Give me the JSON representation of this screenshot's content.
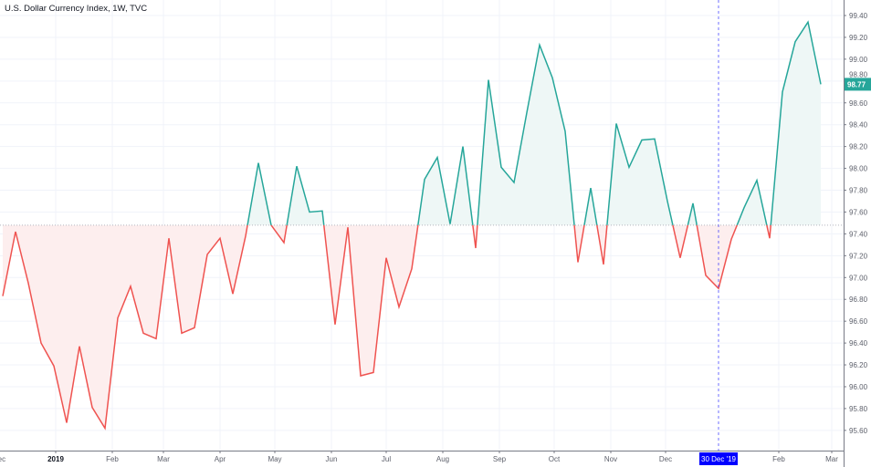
{
  "header": {
    "title": "U.S. Dollar Currency Index, 1W, TVC"
  },
  "colors": {
    "up": "#26a69a",
    "down": "#ef5350",
    "up_fill": "#eef7f6",
    "down_fill": "#fdeeee",
    "crosshair": "#0000ff",
    "grid": "#f0f3fa"
  },
  "crosshair": {
    "label": "30 Dec '19",
    "date": "2019-12-30"
  },
  "last_price": {
    "label": "98.77",
    "value": 98.77
  },
  "chart_data": {
    "type": "area",
    "style": "baseline",
    "title": "U.S. Dollar Currency Index, 1W, TVC",
    "baseline": 97.48,
    "ylim": [
      95.45,
      99.55
    ],
    "grid": true,
    "y_ticks": [
      "95.60",
      "95.80",
      "96.00",
      "96.20",
      "96.40",
      "96.60",
      "96.80",
      "97.00",
      "97.20",
      "97.40",
      "97.60",
      "97.80",
      "98.00",
      "98.20",
      "98.40",
      "98.60",
      "98.80",
      "99.00",
      "99.20",
      "99.40"
    ],
    "x_ticks": [
      {
        "label": "Dec",
        "date": "2018-12-01"
      },
      {
        "label": "2019",
        "date": "2019-01-01",
        "bold": true
      },
      {
        "label": "Feb",
        "date": "2019-02-01"
      },
      {
        "label": "Mar",
        "date": "2019-03-01"
      },
      {
        "label": "Apr",
        "date": "2019-04-01"
      },
      {
        "label": "May",
        "date": "2019-05-01"
      },
      {
        "label": "Jun",
        "date": "2019-06-01"
      },
      {
        "label": "Jul",
        "date": "2019-07-01"
      },
      {
        "label": "Aug",
        "date": "2019-08-01"
      },
      {
        "label": "Sep",
        "date": "2019-09-01"
      },
      {
        "label": "Oct",
        "date": "2019-10-01"
      },
      {
        "label": "Nov",
        "date": "2019-11-01"
      },
      {
        "label": "Dec",
        "date": "2019-12-01"
      },
      {
        "label": "Feb",
        "date": "2020-02-01"
      },
      {
        "label": "Mar",
        "date": "2020-03-01"
      }
    ],
    "x": [
      "2018-12-03",
      "2018-12-10",
      "2018-12-17",
      "2018-12-24",
      "2018-12-31",
      "2019-01-07",
      "2019-01-14",
      "2019-01-21",
      "2019-01-28",
      "2019-02-04",
      "2019-02-11",
      "2019-02-18",
      "2019-02-25",
      "2019-03-04",
      "2019-03-11",
      "2019-03-18",
      "2019-03-25",
      "2019-04-01",
      "2019-04-08",
      "2019-04-15",
      "2019-04-22",
      "2019-04-29",
      "2019-05-06",
      "2019-05-13",
      "2019-05-20",
      "2019-05-27",
      "2019-06-03",
      "2019-06-10",
      "2019-06-17",
      "2019-06-24",
      "2019-07-01",
      "2019-07-08",
      "2019-07-15",
      "2019-07-22",
      "2019-07-29",
      "2019-08-05",
      "2019-08-12",
      "2019-08-19",
      "2019-08-26",
      "2019-09-02",
      "2019-09-09",
      "2019-09-16",
      "2019-09-23",
      "2019-09-30",
      "2019-10-07",
      "2019-10-14",
      "2019-10-21",
      "2019-10-28",
      "2019-11-04",
      "2019-11-11",
      "2019-11-18",
      "2019-11-25",
      "2019-12-02",
      "2019-12-09",
      "2019-12-16",
      "2019-12-23",
      "2019-12-30",
      "2020-01-06",
      "2020-01-13",
      "2020-01-20",
      "2020-01-27",
      "2020-02-03",
      "2020-02-10",
      "2020-02-17",
      "2020-02-24"
    ],
    "values": [
      96.83,
      97.42,
      96.95,
      96.4,
      96.19,
      95.67,
      96.37,
      95.81,
      95.62,
      96.63,
      96.92,
      96.49,
      96.44,
      97.36,
      96.49,
      96.54,
      97.21,
      97.36,
      96.85,
      97.38,
      98.05,
      97.48,
      97.32,
      98.02,
      97.6,
      97.61,
      96.57,
      97.46,
      96.1,
      96.13,
      97.18,
      96.73,
      97.08,
      97.9,
      98.1,
      97.49,
      98.2,
      97.27,
      98.81,
      98.01,
      97.87,
      98.51,
      99.13,
      98.83,
      98.34,
      97.14,
      97.82,
      97.12,
      98.41,
      98.01,
      98.26,
      98.27,
      97.7,
      97.18,
      97.68,
      97.02,
      96.9,
      97.35,
      97.64,
      97.89,
      97.36,
      98.7,
      99.16,
      99.34,
      98.77
    ]
  }
}
